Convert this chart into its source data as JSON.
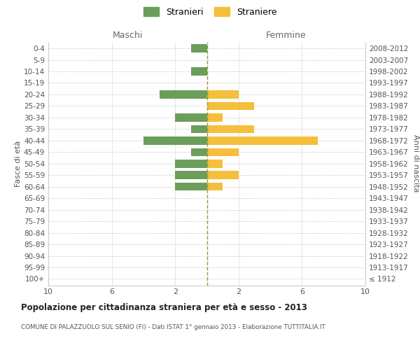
{
  "age_groups": [
    "100+",
    "95-99",
    "90-94",
    "85-89",
    "80-84",
    "75-79",
    "70-74",
    "65-69",
    "60-64",
    "55-59",
    "50-54",
    "45-49",
    "40-44",
    "35-39",
    "30-34",
    "25-29",
    "20-24",
    "15-19",
    "10-14",
    "5-9",
    "0-4"
  ],
  "birth_years": [
    "≤ 1912",
    "1913-1917",
    "1918-1922",
    "1923-1927",
    "1928-1932",
    "1933-1937",
    "1938-1942",
    "1943-1947",
    "1948-1952",
    "1953-1957",
    "1958-1962",
    "1963-1967",
    "1968-1972",
    "1973-1977",
    "1978-1982",
    "1983-1987",
    "1988-1992",
    "1993-1997",
    "1998-2002",
    "2003-2007",
    "2008-2012"
  ],
  "maschi": [
    0,
    0,
    0,
    0,
    0,
    0,
    0,
    0,
    2,
    2,
    2,
    1,
    4,
    1,
    2,
    0,
    3,
    0,
    1,
    0,
    1
  ],
  "femmine": [
    0,
    0,
    0,
    0,
    0,
    0,
    0,
    0,
    1,
    2,
    1,
    2,
    7,
    3,
    1,
    3,
    2,
    0,
    0,
    0,
    0
  ],
  "color_maschi": "#6a9e5a",
  "color_femmine": "#f5be3b",
  "dashed_line_color": "#9a9a30",
  "bg_color": "#ffffff",
  "grid_color": "#cccccc",
  "title": "Popolazione per cittadinanza straniera per età e sesso - 2013",
  "subtitle": "COMUNE DI PALAZZUOLO SUL SENIO (FI) - Dati ISTAT 1° gennaio 2013 - Elaborazione TUTTITALIA.IT",
  "xlabel_left": "Maschi",
  "xlabel_right": "Femmine",
  "ylabel_left": "Fasce di età",
  "ylabel_right": "Anni di nascita",
  "legend_maschi": "Stranieri",
  "legend_femmine": "Straniere",
  "xlim": 10
}
